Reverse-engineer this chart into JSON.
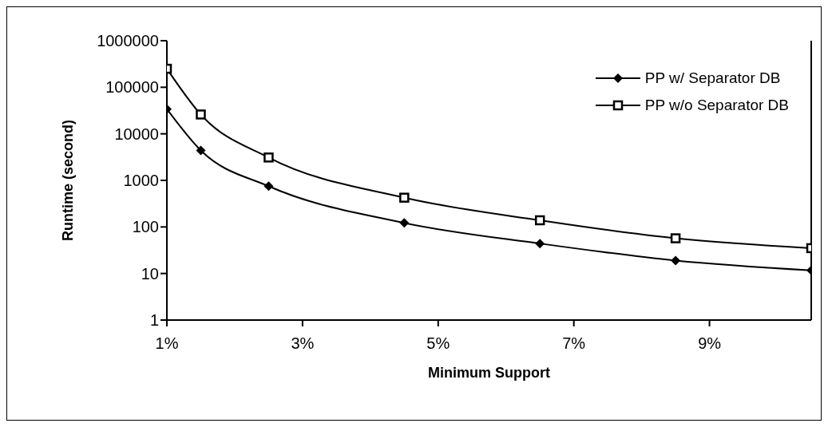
{
  "chart_data": {
    "type": "line",
    "xlabel": "Minimum Support",
    "ylabel": "Runtime (second)",
    "x": [
      1,
      1.5,
      2.5,
      4.5,
      6.5,
      8.5,
      10.5
    ],
    "series": [
      {
        "name": "PP w/ Separator DB",
        "color": "#000000",
        "marker": "diamond",
        "values": [
          34000,
          4400,
          750,
          122,
          44,
          19,
          11.7
        ]
      },
      {
        "name": "PP w/o Separator DB",
        "color": "#000000",
        "marker": "square",
        "values": [
          250000,
          26000,
          3100,
          425,
          139,
          57,
          35
        ]
      }
    ],
    "log": "y",
    "xlim": [
      1,
      10.5
    ],
    "ylim": [
      1,
      1000000
    ],
    "xticks": [
      {
        "value": 1,
        "label": "1%"
      },
      {
        "value": 3,
        "label": "3%"
      },
      {
        "value": 5,
        "label": "5%"
      },
      {
        "value": 7,
        "label": "7%"
      },
      {
        "value": 9,
        "label": "9%"
      }
    ],
    "yticks": [
      1,
      10,
      100,
      1000,
      10000,
      100000,
      1000000
    ],
    "grid": false,
    "legend": "top right",
    "line_style": "solid"
  }
}
